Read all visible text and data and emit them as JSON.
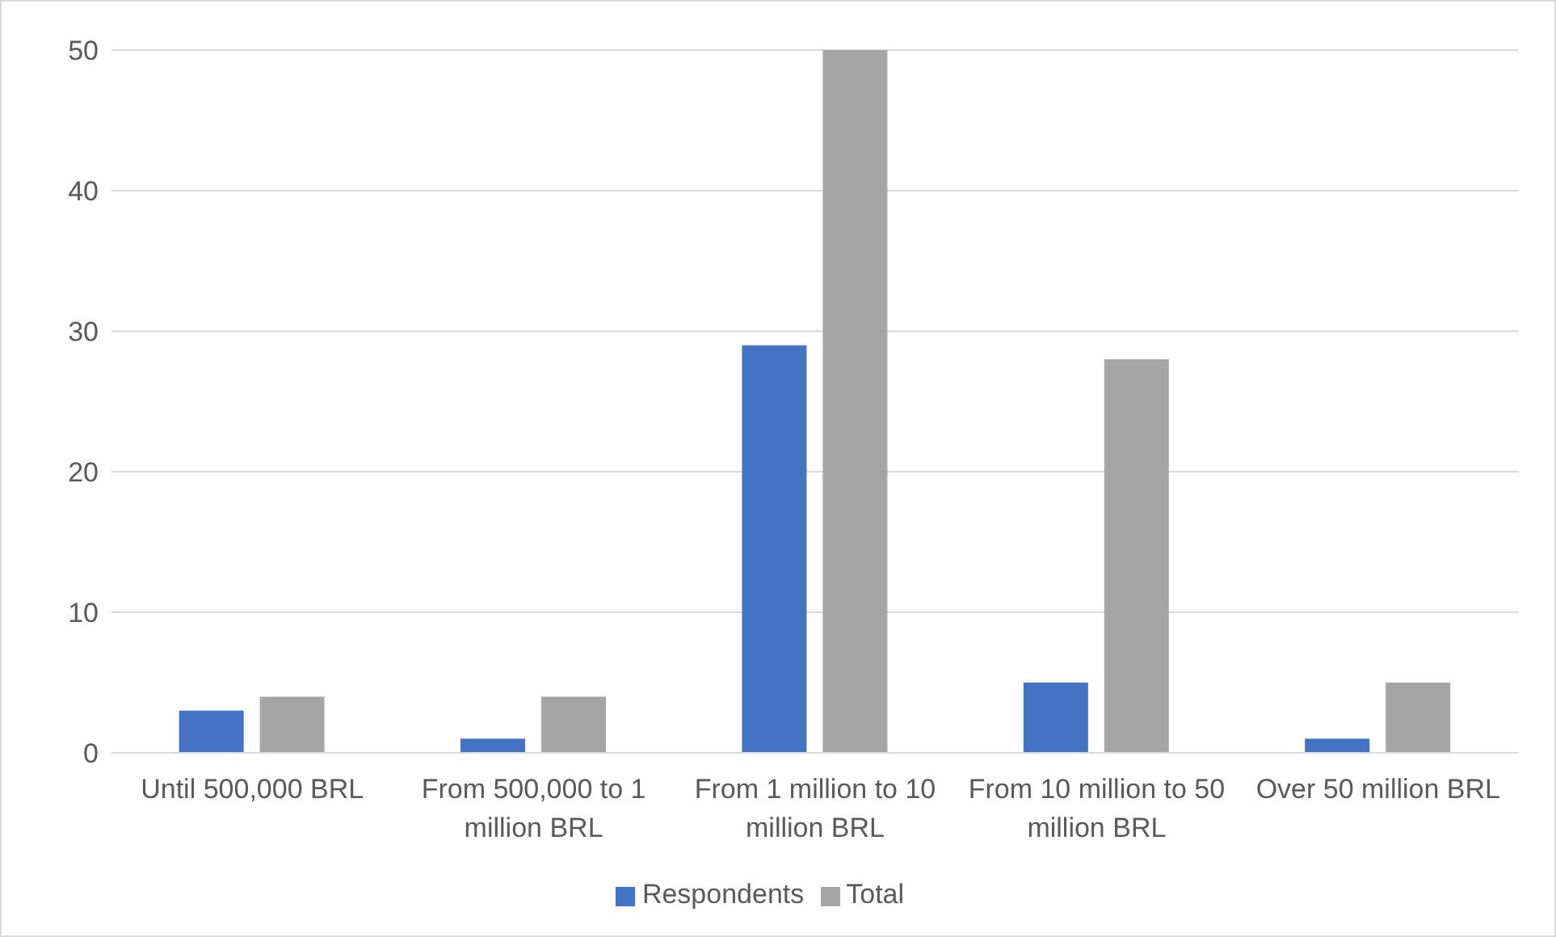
{
  "chart_data": {
    "type": "bar",
    "categories": [
      "Until 500,000 BRL",
      "From 500,000 to 1 million BRL",
      "From 1 million to 10 million BRL",
      "From 10 million to 50 million BRL",
      "Over 50 million BRL"
    ],
    "series": [
      {
        "name": "Respondents",
        "color": "#4472c4",
        "values": [
          3,
          1,
          29,
          5,
          1
        ]
      },
      {
        "name": "Total",
        "color": "#a5a5a5",
        "values": [
          4,
          4,
          50,
          28,
          5
        ]
      }
    ],
    "ylim": [
      0,
      50
    ],
    "yticks": [
      0,
      10,
      20,
      30,
      40,
      50
    ],
    "grid": "y",
    "legend": "bottom"
  }
}
